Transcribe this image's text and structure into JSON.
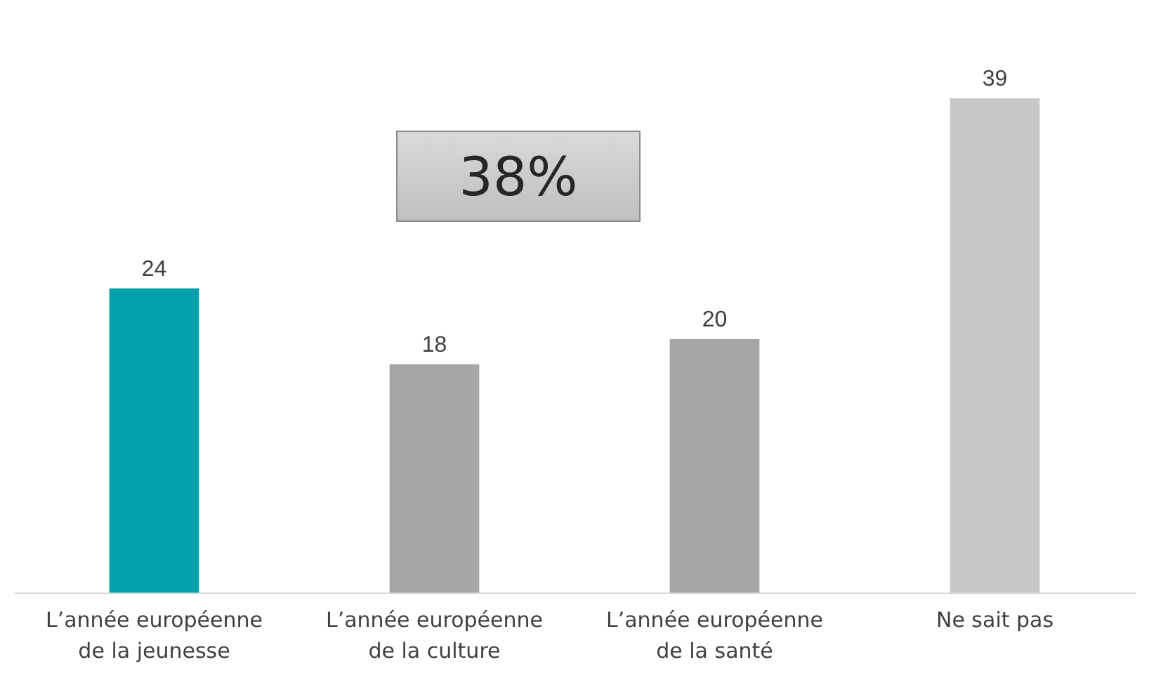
{
  "chart_data": {
    "type": "bar",
    "categories": [
      "L’année européenne de la jeunesse",
      "L’année européenne de la culture",
      "L’année européenne de la santé",
      "Ne sait pas"
    ],
    "values": [
      24,
      18,
      20,
      39
    ],
    "colors": [
      "#00a0ab",
      "#a6a6a6",
      "#a6a6a6",
      "#c8c8c8"
    ],
    "data_labels": true,
    "annotations": [
      "38%"
    ]
  }
}
